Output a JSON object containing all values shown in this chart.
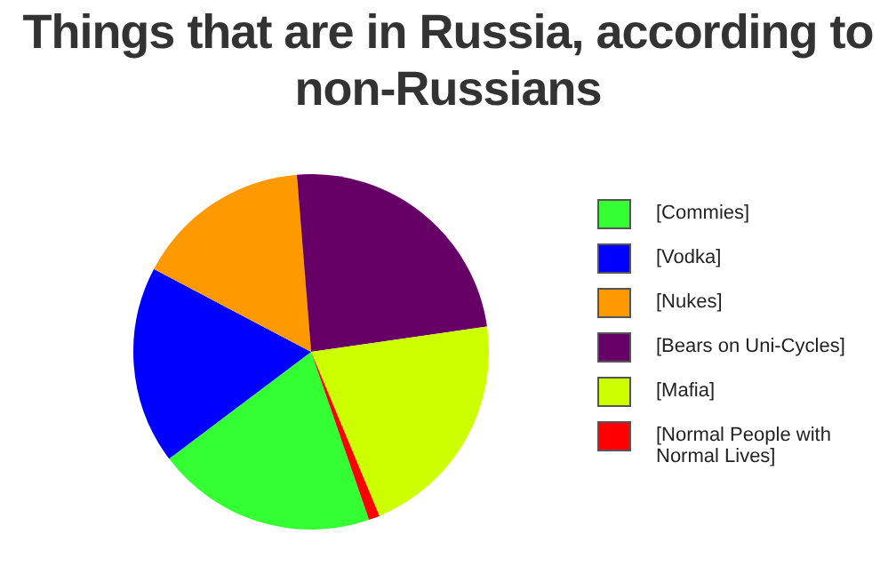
{
  "chart_data": {
    "type": "pie",
    "title": "Things that are in Russia, according to non-Russians",
    "categories": [
      "[Commies]",
      "[Vodka]",
      "[Nukes]",
      "[Bears on Uni-Cycles]",
      "[Mafia]",
      "[Normal People with Normal Lives]"
    ],
    "values": [
      20,
      18,
      16,
      24,
      21,
      1
    ],
    "colors": [
      "#33ff33",
      "#0000ff",
      "#ff9900",
      "#660066",
      "#ccff00",
      "#ff0000"
    ],
    "legend": "right"
  }
}
